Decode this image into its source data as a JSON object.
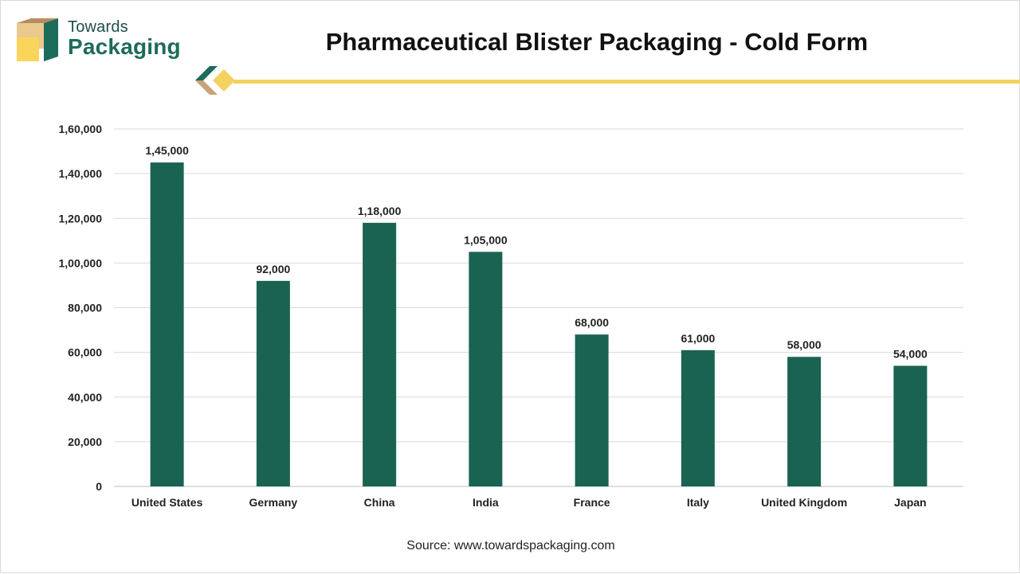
{
  "brand": {
    "name_top": "Towards",
    "name_bottom": "Packaging",
    "colors": {
      "dark_green": "#1a6352",
      "tan": "#c8a27a",
      "yellow": "#f3d25f"
    }
  },
  "source": "Source: www.towardspackaging.com",
  "chart_data": {
    "type": "bar",
    "title": "Pharmaceutical Blister Packaging - Cold Form",
    "categories": [
      "United States",
      "Germany",
      "China",
      "India",
      "France",
      "Italy",
      "United Kingdom",
      "Japan"
    ],
    "values": [
      145000,
      92000,
      118000,
      105000,
      68000,
      61000,
      58000,
      54000
    ],
    "value_labels": [
      "1,45,000",
      "92,000",
      "1,18,000",
      "1,05,000",
      "68,000",
      "61,000",
      "58,000",
      "54,000"
    ],
    "y_ticks": [
      0,
      20000,
      40000,
      60000,
      80000,
      100000,
      120000,
      140000,
      160000
    ],
    "y_tick_labels": [
      "0",
      "20,000",
      "40,000",
      "60,000",
      "80,000",
      "1,00,000",
      "1,20,000",
      "1,40,000",
      "1,60,000"
    ],
    "ylim": [
      0,
      160000
    ],
    "xlabel": "",
    "ylabel": "",
    "grid": true,
    "bar_color": "#1a6352"
  }
}
